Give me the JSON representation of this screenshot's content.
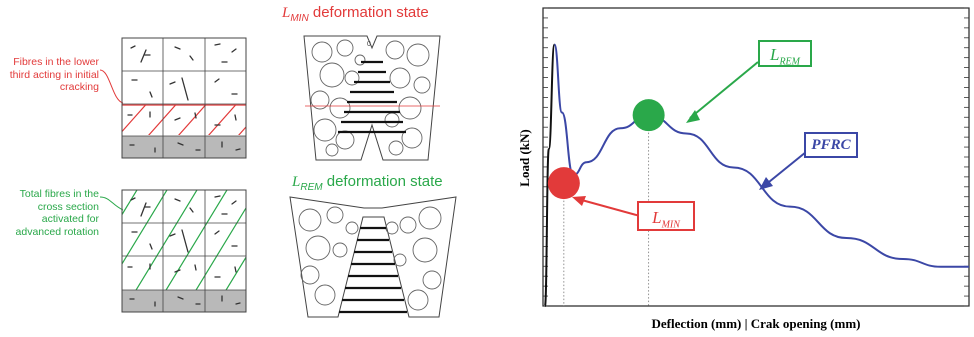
{
  "colors": {
    "red": "#e23a3a",
    "green": "#2aa84a",
    "blue": "#3b47a6",
    "grid_line": "#909090",
    "axis_frame": "#222222",
    "gray_band": "#b9b9b9"
  },
  "left_panel": {
    "top_note": "Fibres in the lower third acting in initial cracking",
    "bottom_note": "Total fibres in the cross section activated for advanced rotation",
    "lmin_state": {
      "symbol": "L",
      "subscript": "MIN",
      "text": "deformation state"
    },
    "lrem_state": {
      "symbol": "L",
      "subscript": "REM",
      "text": "deformation state"
    }
  },
  "chart_data": {
    "type": "line",
    "xlabel": "Deflection (mm) | Crak opening (mm)",
    "ylabel": "Load (kN)",
    "grid": false,
    "series": [
      {
        "name": "PFRC",
        "points": [
          [
            0,
            0
          ],
          [
            0.02,
            0.6
          ],
          [
            0.05,
            1.0
          ],
          [
            0.09,
            0.74
          ],
          [
            0.15,
            0.5
          ],
          [
            0.22,
            0.55
          ],
          [
            0.4,
            0.68
          ],
          [
            0.55,
            0.73
          ],
          [
            0.75,
            0.66
          ],
          [
            1.0,
            0.53
          ],
          [
            1.3,
            0.38
          ],
          [
            1.6,
            0.26
          ],
          [
            1.9,
            0.18
          ],
          [
            2.1,
            0.15
          ],
          [
            2.25,
            0.15
          ]
        ]
      }
    ],
    "markers": [
      {
        "label_symbol": "L",
        "label_sub": "MIN",
        "x": 0.1,
        "y": 0.47,
        "color": "#e23a3a"
      },
      {
        "label_symbol": "L",
        "label_sub": "REM",
        "x": 0.55,
        "y": 0.73,
        "color": "#2aa84a"
      }
    ],
    "annotations": [
      {
        "text": "PFRC",
        "target": "curve"
      }
    ]
  }
}
